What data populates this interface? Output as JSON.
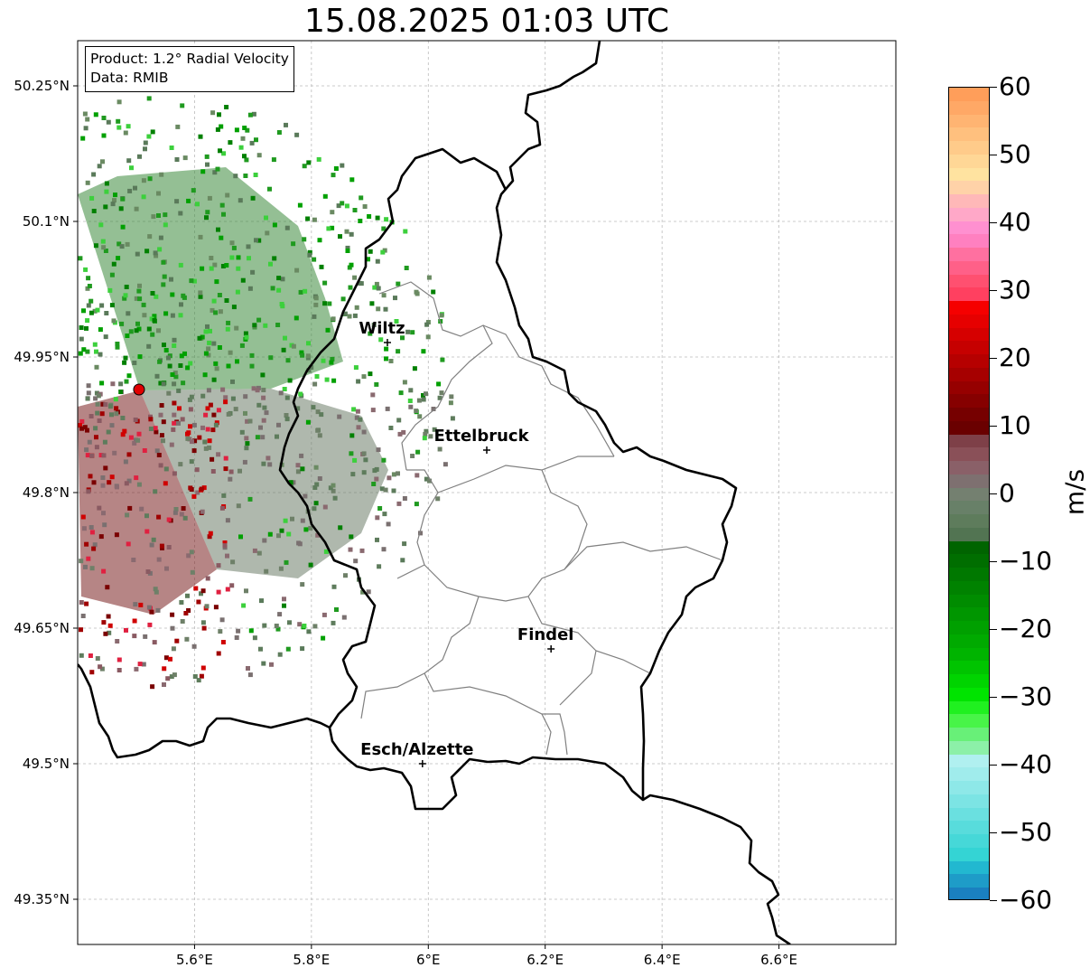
{
  "title": "15.08.2025 01:03 UTC",
  "infobox": {
    "product": "Product: 1.2° Radial Velocity",
    "data": "Data: RMIB"
  },
  "map": {
    "lon_range": [
      5.4,
      6.8
    ],
    "lat_range": [
      49.3,
      50.3
    ],
    "gridlines": true,
    "lon_ticks": [
      {
        "value": 5.6,
        "label": "5.6°E"
      },
      {
        "value": 5.8,
        "label": "5.8°E"
      },
      {
        "value": 6.0,
        "label": "6°E"
      },
      {
        "value": 6.2,
        "label": "6.2°E"
      },
      {
        "value": 6.4,
        "label": "6.4°E"
      },
      {
        "value": 6.6,
        "label": "6.6°E"
      }
    ],
    "lat_ticks": [
      {
        "value": 50.25,
        "label": "50.25°N"
      },
      {
        "value": 50.1,
        "label": "50.1°N"
      },
      {
        "value": 49.95,
        "label": "49.95°N"
      },
      {
        "value": 49.8,
        "label": "49.8°N"
      },
      {
        "value": 49.65,
        "label": "49.65°N"
      },
      {
        "value": 49.5,
        "label": "49.5°N"
      },
      {
        "value": 49.35,
        "label": "49.35°N"
      }
    ],
    "cities": [
      {
        "name": "Wiltz",
        "lon": 5.93,
        "lat": 49.966
      },
      {
        "name": "Ettelbruck",
        "lon": 6.1,
        "lat": 49.847
      },
      {
        "name": "Findel",
        "lon": 6.21,
        "lat": 49.627
      },
      {
        "name": "Esch/Alzette",
        "lon": 5.99,
        "lat": 49.5
      }
    ],
    "radar_site": {
      "lon": 5.505,
      "lat": 49.914,
      "color": "#e00000"
    }
  },
  "colorbar": {
    "unit": "m/s",
    "min": -60,
    "max": 60,
    "ticks": [
      "60",
      "50",
      "40",
      "30",
      "20",
      "10",
      "0",
      "−10",
      "−20",
      "−30",
      "−40",
      "−50",
      "−60"
    ],
    "colors_top_to_bottom": [
      "#ff9e5a",
      "#ffa866",
      "#ffb472",
      "#ffc07e",
      "#ffcb8a",
      "#ffd796",
      "#ffe3a0",
      "#ffd2a8",
      "#ffb8b8",
      "#ffa8c8",
      "#ff90d0",
      "#ff80c0",
      "#ff70a0",
      "#ff6088",
      "#ff5070",
      "#ff4060",
      "#f50000",
      "#e60000",
      "#d60000",
      "#c60000",
      "#b60000",
      "#a60000",
      "#960000",
      "#860000",
      "#760000",
      "#6a0000",
      "#7e4048",
      "#8a5058",
      "#8a6068",
      "#7e7070",
      "#748070",
      "#688068",
      "#5e7c5c",
      "#527452",
      "#006400",
      "#006e00",
      "#007800",
      "#008200",
      "#008c00",
      "#009600",
      "#00a000",
      "#00aa00",
      "#00b400",
      "#00c400",
      "#00d400",
      "#00e400",
      "#20f020",
      "#48f448",
      "#68f078",
      "#8cf0a8",
      "#b0f0f0",
      "#a0ecec",
      "#8ee8e8",
      "#7ce4e4",
      "#6ae0e0",
      "#58dcdc",
      "#46d8d8",
      "#34d4d4",
      "#22b8d0",
      "#1e9cc8",
      "#1a80c0"
    ]
  }
}
